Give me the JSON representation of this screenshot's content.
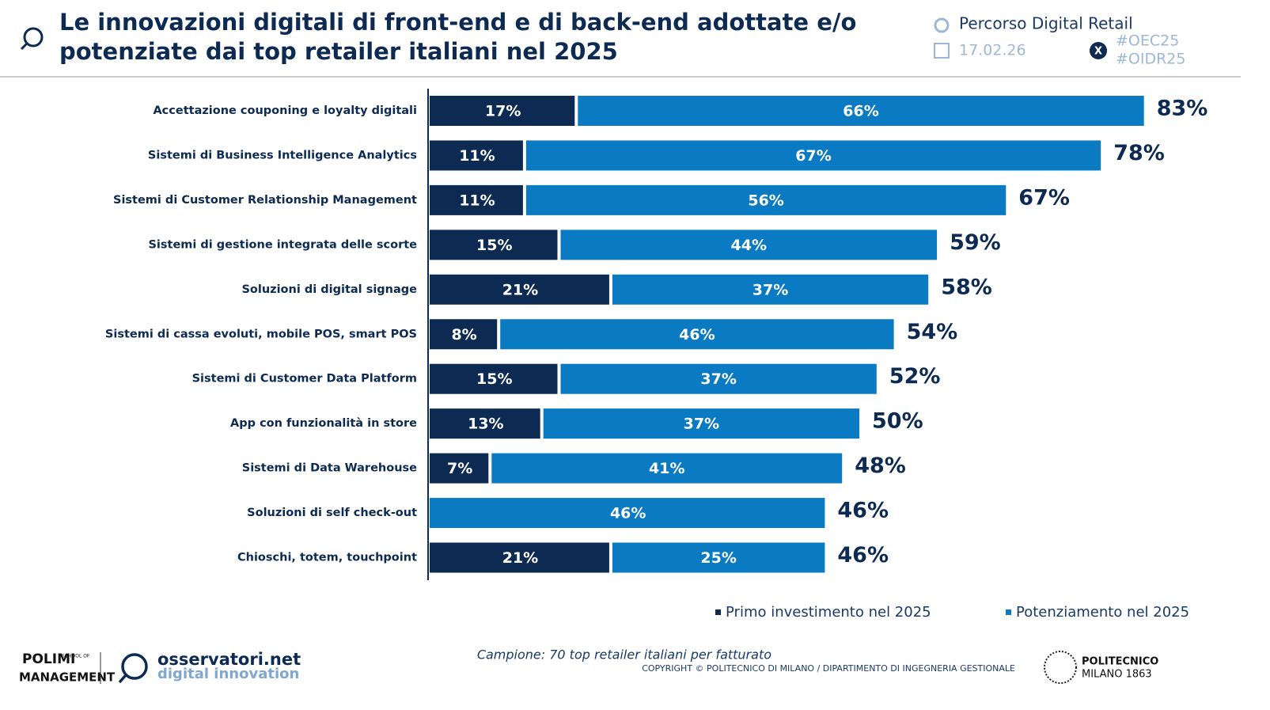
{
  "header": {
    "title_lines": [
      "Le innovazioni digitali di front-end e di back-end adottate e/o",
      "potenziate dai top retailer italiani nel 2025"
    ],
    "course": "Percorso Digital Retail",
    "date": "17.02.26",
    "hashtags": [
      "#OEC25",
      "#OIDR25"
    ]
  },
  "chart_data": {
    "type": "stacked-bar-horizontal",
    "categories": [
      "Accettazione couponing e loyalty digitali",
      "Sistemi di Business Intelligence Analytics",
      "Sistemi di Customer Relationship Management",
      "Sistemi di gestione integrata delle scorte",
      "Soluzioni di digital signage",
      "Sistemi di cassa evoluti, mobile POS, smart POS",
      "Sistemi di Customer Data Platform",
      "App con funzionalità in store",
      "Sistemi di Data Warehouse",
      "Soluzioni di self check-out",
      "Chioschi, totem, touchpoint"
    ],
    "series": [
      {
        "name": "Primo investimento nel 2025",
        "color": "#0d2b52",
        "values": [
          17,
          11,
          11,
          15,
          21,
          8,
          15,
          13,
          7,
          null,
          21
        ],
        "value_labels": [
          "17%",
          "11%",
          "11%",
          "15%",
          "21%",
          "8%",
          "15%",
          "13%",
          "7%",
          null,
          "21%"
        ]
      },
      {
        "name": "Potenziamento nel 2025",
        "color": "#0a7bc2",
        "values": [
          66,
          67,
          56,
          44,
          37,
          46,
          37,
          37,
          41,
          46,
          25
        ],
        "value_labels": [
          "66%",
          "67%",
          "56%",
          "44%",
          "37%",
          "46%",
          "37%",
          "37%",
          "41%",
          "46%",
          "25%"
        ]
      }
    ],
    "totals": {
      "values": [
        83,
        78,
        67,
        59,
        58,
        54,
        52,
        50,
        48,
        46,
        46
      ],
      "value_labels": [
        "83%",
        "78%",
        "67%",
        "59%",
        "58%",
        "54%",
        "52%",
        "50%",
        "48%",
        "46%",
        "46%"
      ]
    },
    "legend": "bottom-right"
  },
  "footer": {
    "sample": "Campione: 70 top retailer italiani per fatturato",
    "copyright": "COPYRIGHT © POLITECNICO DI MILANO / DIPARTIMENTO DI INGEGNERIA GESTIONALE",
    "polimi": "POLIMI",
    "school": "SCHOOL OF",
    "management": "MANAGEMENT",
    "osservatori": "osservatori.net",
    "digital": "digital innovation",
    "politecnico": "POLITECNICO",
    "milano": "MILANO 1863"
  }
}
